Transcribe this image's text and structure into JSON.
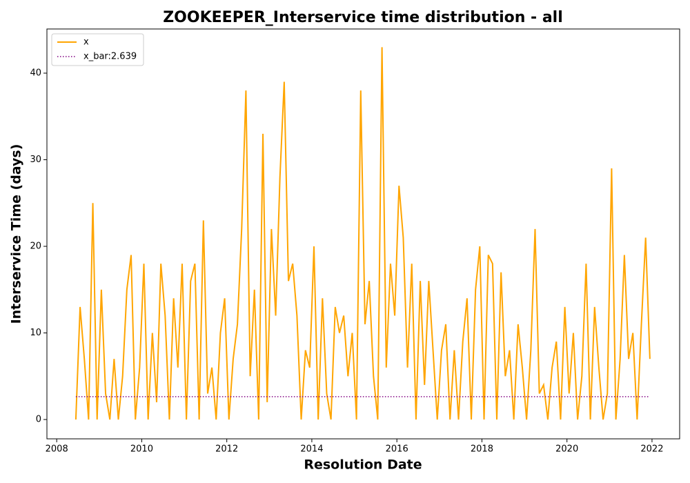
{
  "chart_data": {
    "type": "line",
    "title": "ZOOKEEPER_Interservice time distribution - all",
    "x_label": "Resolution Date",
    "y_label": "Interservice Time (days)",
    "xlim": [
      2007.77,
      2022.65
    ],
    "ylim": [
      -2.23,
      45.1
    ],
    "xticks": [
      2008,
      2010,
      2012,
      2014,
      2016,
      2018,
      2020,
      2022
    ],
    "yticks": [
      0,
      10,
      20,
      30,
      40
    ],
    "legend": "upper left",
    "series": [
      {
        "name": "x",
        "color": "#ffa500",
        "style": "solid",
        "x": [
          2008.45,
          2008.55,
          2008.65,
          2008.75,
          2008.85,
          2008.95,
          2009.05,
          2009.15,
          2009.25,
          2009.35,
          2009.45,
          2009.55,
          2009.65,
          2009.75,
          2009.85,
          2009.95,
          2010.05,
          2010.15,
          2010.25,
          2010.35,
          2010.45,
          2010.55,
          2010.65,
          2010.75,
          2010.85,
          2010.95,
          2011.05,
          2011.15,
          2011.25,
          2011.35,
          2011.45,
          2011.55,
          2011.65,
          2011.75,
          2011.85,
          2011.95,
          2012.05,
          2012.15,
          2012.25,
          2012.35,
          2012.45,
          2012.55,
          2012.65,
          2012.75,
          2012.85,
          2012.95,
          2013.05,
          2013.15,
          2013.25,
          2013.35,
          2013.45,
          2013.55,
          2013.65,
          2013.75,
          2013.85,
          2013.95,
          2014.05,
          2014.15,
          2014.25,
          2014.35,
          2014.45,
          2014.55,
          2014.65,
          2014.75,
          2014.85,
          2014.95,
          2015.05,
          2015.15,
          2015.25,
          2015.35,
          2015.45,
          2015.55,
          2015.65,
          2015.75,
          2015.85,
          2015.95,
          2016.05,
          2016.15,
          2016.25,
          2016.35,
          2016.45,
          2016.55,
          2016.65,
          2016.75,
          2016.85,
          2016.95,
          2017.05,
          2017.15,
          2017.25,
          2017.35,
          2017.45,
          2017.55,
          2017.65,
          2017.75,
          2017.85,
          2017.95,
          2018.05,
          2018.15,
          2018.25,
          2018.35,
          2018.45,
          2018.55,
          2018.65,
          2018.75,
          2018.85,
          2018.95,
          2019.05,
          2019.15,
          2019.25,
          2019.35,
          2019.45,
          2019.55,
          2019.65,
          2019.75,
          2019.85,
          2019.95,
          2020.05,
          2020.15,
          2020.25,
          2020.35,
          2020.45,
          2020.55,
          2020.65,
          2020.75,
          2020.85,
          2020.95,
          2021.05,
          2021.15,
          2021.25,
          2021.35,
          2021.45,
          2021.55,
          2021.65,
          2021.75,
          2021.85,
          2021.95
        ],
        "values": [
          0,
          13,
          7,
          0,
          25,
          0,
          15,
          3,
          0,
          7,
          0,
          5,
          15,
          19,
          0,
          6,
          18,
          0,
          10,
          2,
          18,
          12,
          0,
          14,
          6,
          18,
          0,
          16,
          18,
          0,
          23,
          3,
          6,
          0,
          10,
          14,
          0,
          7,
          11,
          22,
          38,
          5,
          15,
          0,
          33,
          2,
          22,
          12,
          28,
          39,
          16,
          18,
          12,
          0,
          8,
          6,
          20,
          0,
          14,
          3,
          0,
          13,
          10,
          12,
          5,
          10,
          0,
          38,
          11,
          16,
          5,
          0,
          43,
          6,
          18,
          12,
          27,
          21,
          6,
          18,
          0,
          16,
          4,
          16,
          8,
          0,
          8,
          11,
          0,
          8,
          0,
          9,
          14,
          0,
          15,
          20,
          0,
          19,
          18,
          0,
          17,
          5,
          8,
          0,
          11,
          6,
          0,
          8,
          22,
          3,
          4,
          0,
          6,
          9,
          0,
          13,
          3,
          10,
          0,
          5,
          18,
          0,
          13,
          6,
          0,
          3,
          29,
          0,
          7,
          19,
          7,
          10,
          0,
          11,
          21,
          7
        ]
      },
      {
        "name": "x_bar:2.639",
        "color": "#800080",
        "style": "dotted",
        "x": [
          2008.45,
          2021.95
        ],
        "values": [
          2.639,
          2.639
        ]
      }
    ]
  }
}
